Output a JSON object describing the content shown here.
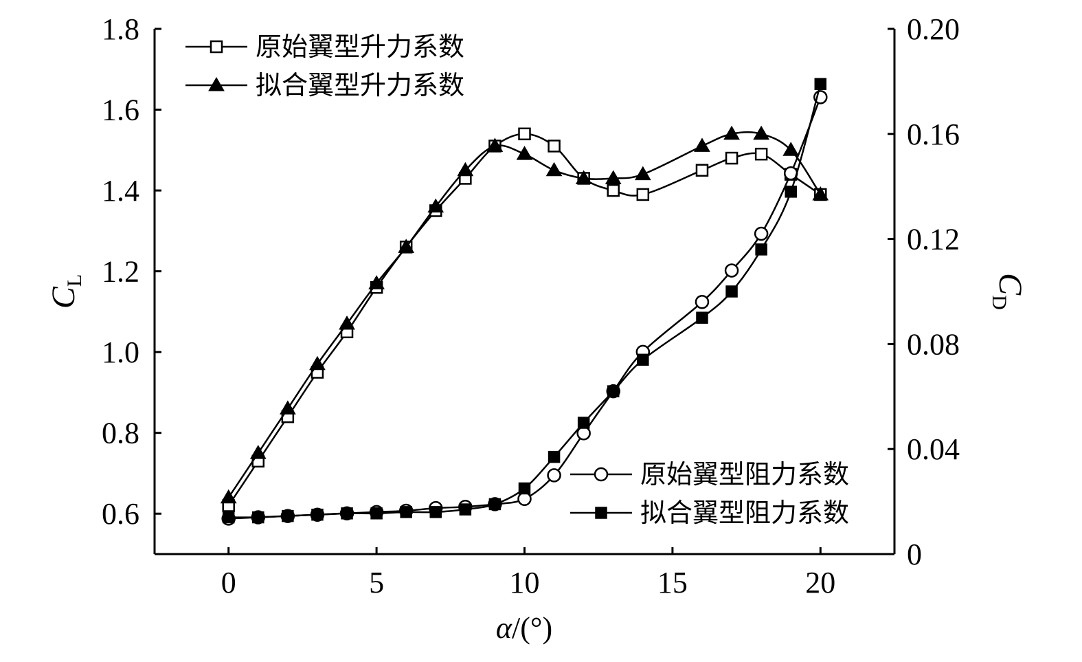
{
  "chart_data": {
    "type": "line",
    "xlabel_var": "α",
    "xlabel_unit": "/(°)",
    "ylabel_left_main": "C",
    "ylabel_left_sub": "L",
    "ylabel_right_main": "C",
    "ylabel_right_sub": "D",
    "xlim": [
      -2.5,
      22.5
    ],
    "ylim_left": [
      0.5,
      1.8
    ],
    "ylim_right": [
      0,
      0.2
    ],
    "x_ticks": [
      "0",
      "5",
      "10",
      "15",
      "20"
    ],
    "y_left_ticks": [
      "0.6",
      "0.8",
      "1.0",
      "1.2",
      "1.4",
      "1.6",
      "1.8"
    ],
    "y_right_ticks": [
      "0",
      "0.04",
      "0.08",
      "0.12",
      "0.16",
      "0.20"
    ],
    "grid": false,
    "series": [
      {
        "name": "原始翼型升力系数",
        "axis": "left",
        "marker": "open-square",
        "x": [
          0,
          1,
          2,
          3,
          4,
          5,
          6,
          7,
          8,
          9,
          10,
          11,
          12,
          13,
          14,
          16,
          17,
          18,
          19,
          20
        ],
        "y": [
          0.62,
          0.73,
          0.84,
          0.95,
          1.05,
          1.16,
          1.26,
          1.35,
          1.43,
          1.51,
          1.54,
          1.51,
          1.43,
          1.4,
          1.39,
          1.45,
          1.48,
          1.49,
          1.44,
          1.39
        ]
      },
      {
        "name": "拟合翼型升力系数",
        "axis": "left",
        "marker": "filled-triangle",
        "x": [
          0,
          1,
          2,
          3,
          4,
          5,
          6,
          7,
          8,
          9,
          10,
          11,
          12,
          13,
          14,
          16,
          17,
          18,
          19,
          20
        ],
        "y": [
          0.64,
          0.75,
          0.86,
          0.97,
          1.07,
          1.17,
          1.26,
          1.36,
          1.45,
          1.51,
          1.49,
          1.45,
          1.43,
          1.43,
          1.44,
          1.51,
          1.54,
          1.54,
          1.5,
          1.39
        ]
      },
      {
        "name": "原始翼型阻力系数",
        "axis": "right",
        "marker": "open-circle",
        "x": [
          0,
          1,
          2,
          3,
          4,
          5,
          6,
          7,
          8,
          9,
          10,
          11,
          12,
          13,
          14,
          16,
          17,
          18,
          19,
          20
        ],
        "y": [
          0.0135,
          0.014,
          0.0145,
          0.015,
          0.0155,
          0.016,
          0.0165,
          0.0175,
          0.018,
          0.019,
          0.021,
          0.03,
          0.046,
          0.062,
          0.077,
          0.096,
          0.108,
          0.122,
          0.145,
          0.174
        ]
      },
      {
        "name": "拟合翼型阻力系数",
        "axis": "right",
        "marker": "filled-square",
        "x": [
          0,
          1,
          2,
          3,
          4,
          5,
          6,
          7,
          8,
          9,
          10,
          11,
          12,
          13,
          14,
          16,
          17,
          18,
          19,
          20
        ],
        "y": [
          0.014,
          0.014,
          0.0145,
          0.015,
          0.0155,
          0.0155,
          0.016,
          0.016,
          0.017,
          0.019,
          0.025,
          0.037,
          0.05,
          0.062,
          0.074,
          0.09,
          0.1,
          0.116,
          0.138,
          0.179
        ]
      }
    ],
    "legends": [
      {
        "position": "top-left",
        "series": [
          0,
          1
        ]
      },
      {
        "position": "bottom-right",
        "series": [
          2,
          3
        ]
      }
    ]
  }
}
